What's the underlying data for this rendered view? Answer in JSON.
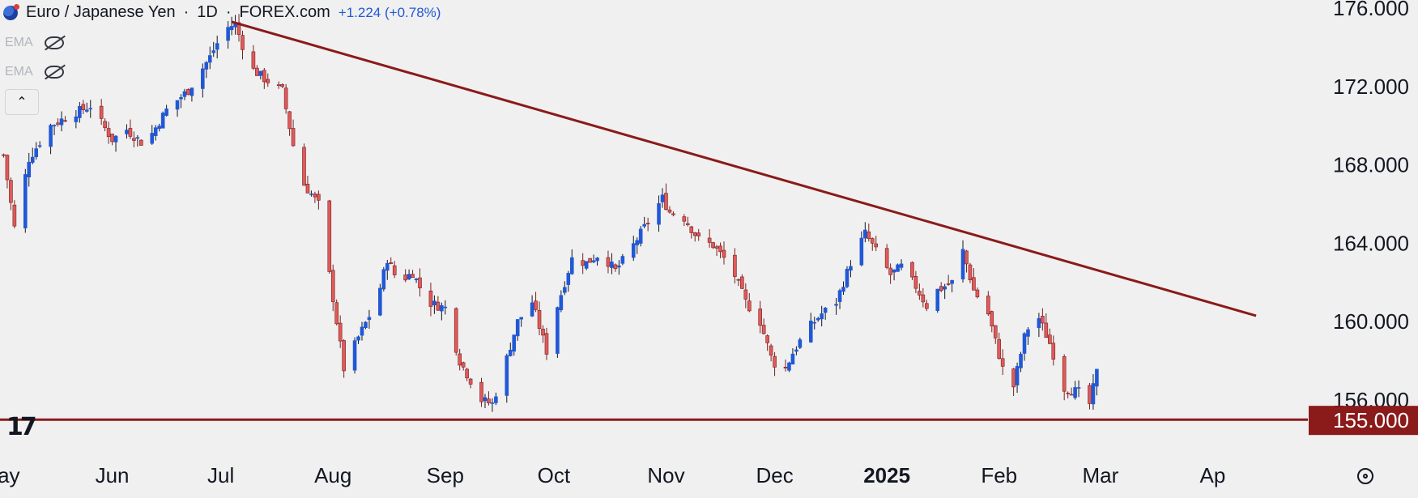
{
  "header": {
    "symbol": "Euro / Japanese Yen",
    "interval": "1D",
    "source": "FOREX.com",
    "change": "+1.224 (+0.78%)"
  },
  "indicators": [
    {
      "label": "EMA",
      "icon": "eye-hidden-icon"
    },
    {
      "label": "EMA",
      "icon": "eye-hidden-icon"
    }
  ],
  "price_label": {
    "value": "155.000",
    "color": "#8b1a1a"
  },
  "colors": {
    "up": "#2158d6",
    "down": "#e05a5a",
    "trendline": "#8b1a1a",
    "background": "#f0f0f0"
  },
  "chart_data": {
    "type": "candlestick",
    "ylim": [
      151.5,
      176.3
    ],
    "y_ticks": [
      {
        "value": 176,
        "label": "176.000"
      },
      {
        "value": 172,
        "label": "172.000"
      },
      {
        "value": 168,
        "label": "168.000"
      },
      {
        "value": 164,
        "label": "164.000"
      },
      {
        "value": 160,
        "label": "160.000"
      },
      {
        "value": 156,
        "label": "156.000"
      }
    ],
    "x_ticks": [
      {
        "label": "May",
        "day": 0,
        "bold": false
      },
      {
        "label": "Jun",
        "day": 31,
        "bold": false
      },
      {
        "label": "Jul",
        "day": 61,
        "bold": false
      },
      {
        "label": "Aug",
        "day": 92,
        "bold": false
      },
      {
        "label": "Sep",
        "day": 123,
        "bold": false
      },
      {
        "label": "Oct",
        "day": 153,
        "bold": false
      },
      {
        "label": "Nov",
        "day": 184,
        "bold": false
      },
      {
        "label": "Dec",
        "day": 214,
        "bold": false
      },
      {
        "label": "2025",
        "day": 245,
        "bold": true
      },
      {
        "label": "Feb",
        "day": 276,
        "bold": false
      },
      {
        "label": "Mar",
        "day": 304,
        "bold": false
      },
      {
        "label": "Ap",
        "day": 335,
        "bold": false
      }
    ],
    "series_anchors": [
      [
        1,
        168.5
      ],
      [
        4,
        164.8
      ],
      [
        8,
        168.3
      ],
      [
        14,
        170.0
      ],
      [
        20,
        170.6
      ],
      [
        25,
        171.0
      ],
      [
        31,
        169.3
      ],
      [
        35,
        169.8
      ],
      [
        40,
        169.0
      ],
      [
        46,
        170.8
      ],
      [
        52,
        171.8
      ],
      [
        58,
        173.5
      ],
      [
        62,
        174.9
      ],
      [
        65,
        175.2
      ],
      [
        69,
        173.0
      ],
      [
        73,
        172.4
      ],
      [
        78,
        171.8
      ],
      [
        81,
        169.0
      ],
      [
        84,
        167.0
      ],
      [
        88,
        166.0
      ],
      [
        93,
        160.0
      ],
      [
        95,
        157.6
      ],
      [
        99,
        159.2
      ],
      [
        104,
        161.0
      ],
      [
        107,
        163.2
      ],
      [
        110,
        162.0
      ],
      [
        114,
        162.5
      ],
      [
        118,
        161.0
      ],
      [
        123,
        160.7
      ],
      [
        127,
        158.0
      ],
      [
        133,
        156.0
      ],
      [
        136,
        155.8
      ],
      [
        139,
        157.5
      ],
      [
        143,
        160.0
      ],
      [
        147,
        161.0
      ],
      [
        151,
        158.5
      ],
      [
        154,
        160.8
      ],
      [
        158,
        163.2
      ],
      [
        162,
        163.0
      ],
      [
        166,
        163.5
      ],
      [
        170,
        162.6
      ],
      [
        174,
        163.6
      ],
      [
        178,
        164.8
      ],
      [
        183,
        166.3
      ],
      [
        185,
        165.6
      ],
      [
        189,
        165.3
      ],
      [
        193,
        164.2
      ],
      [
        197,
        163.9
      ],
      [
        202,
        162.8
      ],
      [
        206,
        161.0
      ],
      [
        210,
        160.0
      ],
      [
        213,
        158.2
      ],
      [
        216,
        157.2
      ],
      [
        219,
        158.4
      ],
      [
        223,
        159.6
      ],
      [
        227,
        160.4
      ],
      [
        231,
        161.0
      ],
      [
        235,
        163.0
      ],
      [
        239,
        164.5
      ],
      [
        242,
        163.6
      ],
      [
        246,
        162.4
      ],
      [
        249,
        162.8
      ],
      [
        253,
        161.8
      ],
      [
        256,
        160.8
      ],
      [
        259,
        161.6
      ],
      [
        263,
        162.0
      ],
      [
        266,
        163.6
      ],
      [
        269,
        161.6
      ],
      [
        273,
        160.4
      ],
      [
        277,
        157.6
      ],
      [
        280,
        156.7
      ],
      [
        283,
        159.2
      ],
      [
        286,
        160.6
      ],
      [
        290,
        158.9
      ],
      [
        294,
        156.6
      ],
      [
        298,
        156.4
      ],
      [
        301,
        155.8
      ],
      [
        303,
        157.4
      ]
    ],
    "trendline": [
      [
        64,
        175.3
      ],
      [
        347,
        160.3
      ]
    ],
    "support_level": 155.0
  }
}
